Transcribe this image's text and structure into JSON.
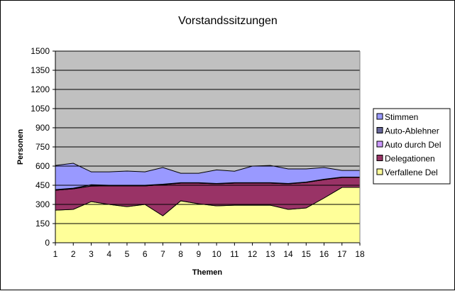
{
  "chart_data": {
    "type": "area",
    "stacked": true,
    "title": "Vorstandssitzungen",
    "xlabel": "Themen",
    "ylabel": "Personen",
    "ylim": [
      0,
      1500
    ],
    "yticks": [
      0,
      150,
      300,
      450,
      600,
      750,
      900,
      1050,
      1200,
      1350,
      1500
    ],
    "x": [
      1,
      2,
      3,
      4,
      5,
      6,
      7,
      8,
      9,
      10,
      11,
      12,
      13,
      14,
      15,
      16,
      17,
      18
    ],
    "grid": true,
    "legend_position": "right",
    "plot_background": "#C0C0C0",
    "series": [
      {
        "name": "Verfallene Del",
        "color": "#FFFF99",
        "values": [
          255,
          261,
          322,
          300,
          283,
          300,
          211,
          328,
          305,
          289,
          294,
          294,
          294,
          261,
          272,
          350,
          433,
          433
        ]
      },
      {
        "name": "Delegationen",
        "color": "#993366",
        "values": [
          156,
          161,
          122,
          145,
          162,
          145,
          244,
          139,
          162,
          172,
          173,
          173,
          173,
          200,
          200,
          144,
          78,
          78
        ]
      },
      {
        "name": "Auto durch Del",
        "color": "#CC99FF",
        "values": [
          0,
          0,
          0,
          0,
          0,
          0,
          0,
          0,
          0,
          0,
          0,
          0,
          0,
          0,
          0,
          0,
          0,
          0
        ]
      },
      {
        "name": "Auto-Ablehner",
        "color": "#666699",
        "values": [
          5,
          5,
          10,
          5,
          5,
          5,
          3,
          3,
          3,
          3,
          3,
          3,
          3,
          3,
          3,
          3,
          3,
          3
        ]
      },
      {
        "name": "Stimmen",
        "color": "#9999FF",
        "values": [
          189,
          195,
          101,
          105,
          111,
          105,
          131,
          74,
          74,
          106,
          90,
          130,
          135,
          114,
          103,
          92,
          52,
          52
        ]
      }
    ],
    "legend_order": [
      "Stimmen",
      "Auto-Ablehner",
      "Auto durch Del",
      "Delegationen",
      "Verfallene Del"
    ]
  }
}
